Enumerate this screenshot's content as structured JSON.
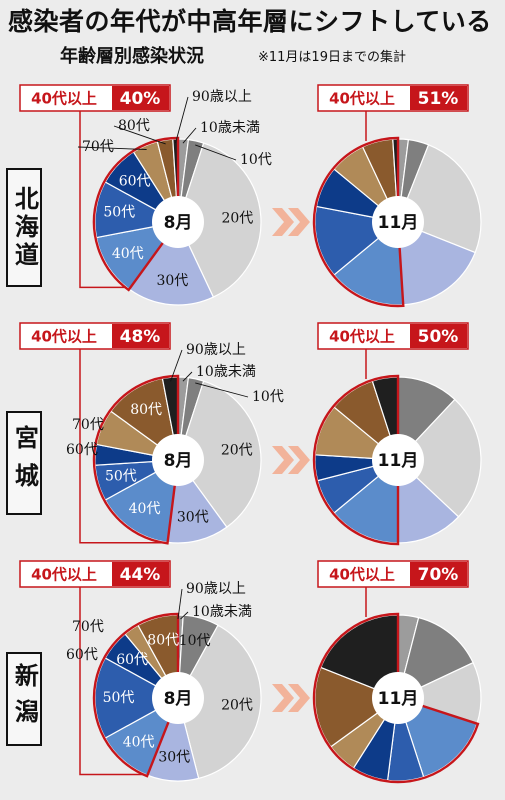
{
  "headline": "感染者の年代が中高年層にシフトしている",
  "subtitle": "年齢層別感染状況",
  "note": "※11月は19日までの集計",
  "chart_data": [
    {
      "region": "北海道",
      "type": "pie",
      "panels": [
        {
          "label": "8月",
          "badge_prefix": "40代以上",
          "badge_value": "40%",
          "categories": [
            "10歳未満",
            "10代",
            "20代",
            "30代",
            "40代",
            "50代",
            "60代",
            "70代",
            "80代",
            "90歳以上"
          ],
          "values": [
            2,
            3,
            38,
            17,
            12,
            11,
            8,
            5,
            3,
            1
          ]
        },
        {
          "label": "11月",
          "badge_prefix": "40代以上",
          "badge_value": "51%",
          "categories": [
            "10歳未満",
            "10代",
            "20代",
            "30代",
            "40代",
            "50代",
            "60代",
            "70代",
            "80代",
            "90歳以上"
          ],
          "values": [
            2,
            4,
            25,
            18,
            15,
            14,
            8,
            7,
            6,
            1
          ]
        }
      ]
    },
    {
      "region": "宮城",
      "type": "pie",
      "panels": [
        {
          "label": "8月",
          "badge_prefix": "40代以上",
          "badge_value": "48%",
          "categories": [
            "10歳未満",
            "10代",
            "20代",
            "30代",
            "40代",
            "50代",
            "60代",
            "70代",
            "80代",
            "90歳以上"
          ],
          "values": [
            2,
            3,
            35,
            12,
            15,
            7,
            4,
            7,
            12,
            3
          ]
        },
        {
          "label": "11月",
          "badge_prefix": "40代以上",
          "badge_value": "50%",
          "categories": [
            "10歳未満",
            "10代",
            "20代",
            "30代",
            "40代",
            "50代",
            "60代",
            "70代",
            "80代",
            "90歳以上"
          ],
          "values": [
            0,
            12,
            25,
            13,
            14,
            7,
            5,
            10,
            9,
            5
          ]
        }
      ]
    },
    {
      "region": "新潟",
      "type": "pie",
      "panels": [
        {
          "label": "8月",
          "badge_prefix": "40代以上",
          "badge_value": "44%",
          "categories": [
            "10歳未満",
            "10代",
            "20代",
            "30代",
            "40代",
            "50代",
            "60代",
            "70代",
            "80代",
            "90歳以上"
          ],
          "values": [
            1,
            7,
            38,
            10,
            11,
            16,
            6,
            3,
            8,
            0
          ]
        },
        {
          "label": "11月",
          "badge_prefix": "40代以上",
          "badge_value": "70%",
          "categories": [
            "10歳未満",
            "10代",
            "20代",
            "30代",
            "40代",
            "50代",
            "60代",
            "70代",
            "80代",
            "90歳以上"
          ],
          "values": [
            4,
            14,
            12,
            0,
            15,
            7,
            7,
            6,
            16,
            19
          ]
        }
      ]
    }
  ],
  "colors": {
    "10歳未満": "#9c9c9c",
    "10代": "#7f7f7f",
    "20代": "#d3d3d3",
    "30代": "#a9b5e0",
    "40代": "#5b8ccb",
    "50代": "#2d5dad",
    "60代": "#0d3b89",
    "70代": "#b08a58",
    "80代": "#8a5a2d",
    "90歳以上": "#1f1f1f",
    "highlight": "#c6161b",
    "arrow": "#f2b39a"
  },
  "callouts": {
    "北海道": {
      "c90": "90歳以上",
      "c10u": "10歳未満",
      "c10": "10代",
      "c80": "80代",
      "c70": "70代"
    },
    "宮城": {
      "c90": "90歳以上",
      "c10u": "10歳未満",
      "c10": "10代",
      "c80": "80代",
      "c70": "70代",
      "c60": "60代"
    },
    "新潟": {
      "c90": "90歳以上",
      "c10u": "10歳未満",
      "c80": "80代",
      "c70": "70代",
      "c60": "60代"
    }
  },
  "slice_labels": {
    "20代": "20代",
    "30代": "30代",
    "40代": "40代",
    "50代": "50代",
    "60代": "60代",
    "80代": "80代",
    "10代": "10代"
  }
}
